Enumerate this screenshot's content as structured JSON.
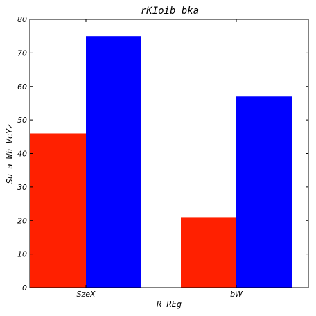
{
  "chart_data": {
    "type": "bar",
    "title": "rKIoib bka",
    "xlabel": "R REg",
    "ylabel": "Su a Wh VcYz",
    "categories": [
      "SzeX",
      "bW"
    ],
    "series": [
      {
        "values": [
          46,
          21
        ],
        "color": "#ff2000"
      },
      {
        "values": [
          75,
          57
        ],
        "color": "#0000ff"
      }
    ],
    "ylim": [
      0,
      80
    ],
    "yticks": [
      0,
      10,
      20,
      30,
      40,
      50,
      60,
      70,
      80
    ],
    "grid": false,
    "legend": "none"
  }
}
